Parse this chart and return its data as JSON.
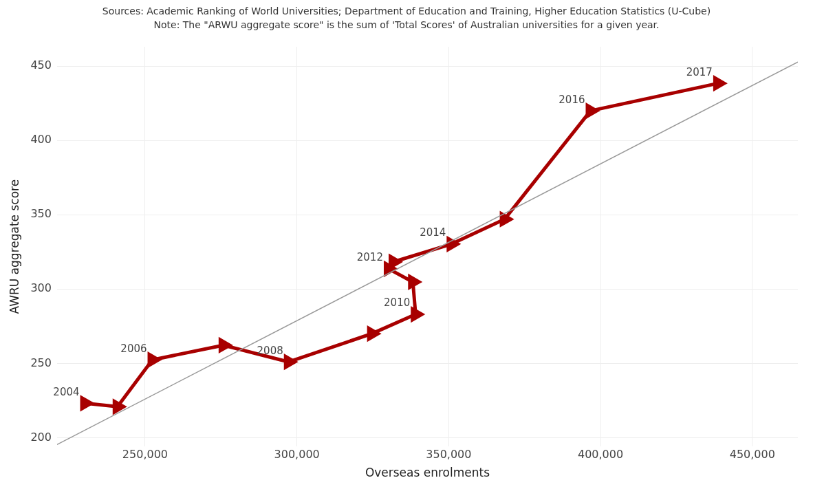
{
  "chart_data": {
    "type": "line",
    "xlabel": "Overseas enrolments",
    "ylabel": "AWRU aggregate score",
    "annotations": [
      "Sources: Academic Ranking of World Universities; Department of Education and Training, Higher Education Statistics (U-Cube)",
      "Note: The \"ARWU aggregate score\" is the sum of 'Total Scores' of Australian universities for a given year.",
      {
        "text": "2004",
        "x": 230200,
        "y": 223.2
      },
      {
        "text": "2006",
        "x": 252400,
        "y": 252.4
      },
      {
        "text": "2008",
        "x": 297300,
        "y": 251.0
      },
      {
        "text": "2010",
        "x": 339100,
        "y": 283.0
      },
      {
        "text": "2012",
        "x": 330200,
        "y": 313.6
      },
      {
        "text": "2014",
        "x": 350900,
        "y": 330.3
      },
      {
        "text": "2016",
        "x": 396700,
        "y": 419.9
      },
      {
        "text": "2017",
        "x": 438700,
        "y": 438.4
      }
    ],
    "series": [
      {
        "color": "#a80000",
        "marker": "triangle",
        "x": [
          230200,
          240900,
          252400,
          275800,
          297300,
          324700,
          339100,
          338200,
          330200,
          331800,
          350900,
          368400,
          396700,
          438700
        ],
        "values": [
          223.2,
          220.9,
          252.4,
          262.2,
          251.0,
          270.0,
          283.0,
          304.8,
          313.6,
          318.3,
          330.3,
          347.0,
          419.9,
          438.4
        ]
      },
      {
        "color": "#999999",
        "marker": "none",
        "x": [
          221000,
          465000
        ],
        "values": [
          195.4,
          452.8
        ]
      }
    ],
    "xlim": [
      221000,
      465000
    ],
    "ylim": [
      194,
      463
    ],
    "xticks": [
      {
        "value": 250000,
        "label": "250,000"
      },
      {
        "value": 300000,
        "label": "300,000"
      },
      {
        "value": 350000,
        "label": "350,000"
      },
      {
        "value": 400000,
        "label": "400,000"
      },
      {
        "value": 450000,
        "label": "450,000"
      }
    ],
    "yticks": [
      200,
      250,
      300,
      350,
      400,
      450
    ],
    "grid": true,
    "legend": false
  }
}
